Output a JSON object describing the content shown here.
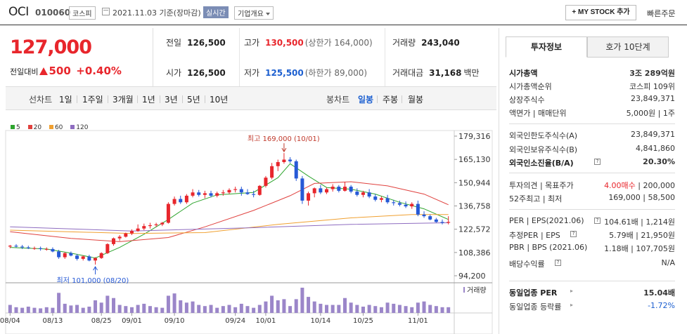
{
  "header": {
    "name": "OCI",
    "code": "010060",
    "market": "코스피",
    "date": "2021.11.03 기준(장마감)",
    "realtime": "실시간",
    "corp_info": "기업개요",
    "mystock": "+ MY STOCK 추가",
    "quick_order": "빠른주문"
  },
  "price": {
    "current": "127,000",
    "change_label": "전일대비",
    "change": "500",
    "change_pct": "+0.40%"
  },
  "stats": {
    "prev_label": "전일",
    "prev": "126,500",
    "high_label": "고가",
    "high": "130,500",
    "upper_limit": "(상한가 164,000)",
    "volume_label": "거래량",
    "volume": "243,040",
    "open_label": "시가",
    "open": "126,500",
    "low_label": "저가",
    "low": "125,500",
    "lower_limit": "(하한가 89,000)",
    "amount_label": "거래대금",
    "amount": "31,168",
    "amount_unit": "백만"
  },
  "toolbar": {
    "line_label": "선차트",
    "periods": [
      "1일",
      "1주일",
      "3개월",
      "1년",
      "3년",
      "5년",
      "10년"
    ],
    "candle_label": "봉차트",
    "candles": [
      "일봉",
      "주봉",
      "월봉"
    ],
    "active_candle": "일봉"
  },
  "chart_data": {
    "type": "candlestick",
    "legend": [
      {
        "name": "5",
        "color": "#2fa52f"
      },
      {
        "name": "20",
        "color": "#e0413e"
      },
      {
        "name": "60",
        "color": "#f0a030"
      },
      {
        "name": "120",
        "color": "#8e6cc0"
      }
    ],
    "y_ticks": [
      179316,
      165130,
      150944,
      136758,
      122572,
      108386,
      94200
    ],
    "x_ticks": [
      "08/04",
      "08/13",
      "08/25",
      "09/01",
      "09/10",
      "09/24",
      "10/01",
      "10/14",
      "10/25",
      "11/01"
    ],
    "high_annotation": "최고 169,000 (10/01)",
    "low_annotation": "최저 101,000 (08/20)",
    "volume_label": "거래량",
    "candles": [
      [
        112000,
        113000,
        111000,
        112500
      ],
      [
        112500,
        113500,
        111500,
        112000
      ],
      [
        112000,
        113000,
        110500,
        111500
      ],
      [
        111500,
        112500,
        110500,
        111000
      ],
      [
        111000,
        112000,
        110000,
        111000
      ],
      [
        111000,
        112000,
        109500,
        110500
      ],
      [
        110500,
        111500,
        109500,
        110500
      ],
      [
        110500,
        111500,
        108500,
        109000
      ],
      [
        109000,
        110000,
        104500,
        105500
      ],
      [
        105500,
        108500,
        104500,
        108000
      ],
      [
        108000,
        109000,
        106000,
        106500
      ],
      [
        106500,
        107500,
        103500,
        104500
      ],
      [
        104500,
        106500,
        103500,
        106000
      ],
      [
        106000,
        107000,
        103000,
        103500
      ],
      [
        103500,
        105500,
        101000,
        105000
      ],
      [
        105000,
        108500,
        104500,
        108000
      ],
      [
        108000,
        114000,
        107500,
        113500
      ],
      [
        113500,
        117500,
        112500,
        117000
      ],
      [
        117000,
        119000,
        115500,
        118000
      ],
      [
        118000,
        120500,
        117500,
        120000
      ],
      [
        120000,
        122500,
        119000,
        121500
      ],
      [
        121500,
        125500,
        121000,
        123000
      ],
      [
        123000,
        126000,
        122000,
        124500
      ],
      [
        124500,
        126500,
        123000,
        125000
      ],
      [
        125000,
        126500,
        124000,
        125500
      ],
      [
        125500,
        127000,
        124500,
        126500
      ],
      [
        126500,
        139000,
        126000,
        138000
      ],
      [
        138000,
        142500,
        137000,
        141000
      ],
      [
        141000,
        143000,
        138000,
        139000
      ],
      [
        139000,
        144000,
        138000,
        143000
      ],
      [
        143000,
        147000,
        142000,
        145000
      ],
      [
        145000,
        146500,
        142500,
        143500
      ],
      [
        143500,
        146000,
        141500,
        144500
      ],
      [
        144500,
        146000,
        142000,
        143000
      ],
      [
        143000,
        145500,
        142000,
        144500
      ],
      [
        144500,
        146500,
        143000,
        145000
      ],
      [
        145000,
        147500,
        144000,
        146500
      ],
      [
        146500,
        148500,
        145000,
        147000
      ],
      [
        147000,
        148500,
        143000,
        145000
      ],
      [
        145000,
        147000,
        143500,
        144000
      ],
      [
        144000,
        146000,
        142000,
        143500
      ],
      [
        143500,
        149500,
        143000,
        149000
      ],
      [
        149000,
        155000,
        148000,
        154000
      ],
      [
        154000,
        163000,
        153000,
        161000
      ],
      [
        161000,
        165000,
        158000,
        163500
      ],
      [
        163500,
        169000,
        162500,
        165000
      ],
      [
        165000,
        166500,
        163000,
        164000
      ],
      [
        164000,
        165000,
        152000,
        153500
      ],
      [
        153500,
        155000,
        138000,
        140000
      ],
      [
        140000,
        145500,
        137000,
        144500
      ],
      [
        144500,
        148000,
        142000,
        147500
      ],
      [
        147500,
        149500,
        144000,
        145000
      ],
      [
        145000,
        148000,
        144000,
        147000
      ],
      [
        147000,
        150000,
        145500,
        148500
      ],
      [
        148500,
        149500,
        145000,
        146000
      ],
      [
        146000,
        151500,
        145500,
        148500
      ],
      [
        148500,
        149500,
        144500,
        145500
      ],
      [
        145500,
        147500,
        142500,
        143500
      ],
      [
        143500,
        146000,
        142000,
        145000
      ],
      [
        145000,
        147000,
        141500,
        142500
      ],
      [
        142500,
        144000,
        139500,
        140500
      ],
      [
        140500,
        142500,
        139000,
        141500
      ],
      [
        141500,
        143500,
        138000,
        139000
      ],
      [
        139000,
        140500,
        137000,
        138500
      ],
      [
        138500,
        140000,
        136500,
        137500
      ],
      [
        137500,
        139500,
        135500,
        136500
      ],
      [
        136500,
        139000,
        135000,
        138000
      ],
      [
        138000,
        140000,
        130500,
        131500
      ],
      [
        131500,
        133500,
        129500,
        130500
      ],
      [
        130500,
        131500,
        128000,
        128500
      ],
      [
        128500,
        129500,
        126500,
        127000
      ],
      [
        127000,
        128500,
        125500,
        126500
      ],
      [
        126500,
        130500,
        125500,
        127000
      ]
    ],
    "volumes": [
      14,
      10,
      9,
      11,
      9,
      8,
      10,
      9,
      35,
      16,
      13,
      14,
      9,
      11,
      22,
      18,
      30,
      26,
      14,
      12,
      10,
      14,
      16,
      12,
      10,
      9,
      30,
      34,
      22,
      18,
      20,
      14,
      12,
      14,
      9,
      12,
      14,
      10,
      16,
      12,
      9,
      14,
      20,
      30,
      22,
      24,
      12,
      24,
      44,
      28,
      20,
      16,
      14,
      14,
      14,
      26,
      18,
      14,
      11,
      14,
      12,
      10,
      18,
      16,
      14,
      12,
      10,
      18,
      20,
      14,
      12,
      10,
      10
    ],
    "ma_values": {
      "5": [
        [
          0,
          111500
        ],
        [
          6,
          110500
        ],
        [
          10,
          108000
        ],
        [
          14,
          105000
        ],
        [
          18,
          111500
        ],
        [
          22,
          119500
        ],
        [
          26,
          128500
        ],
        [
          30,
          138500
        ],
        [
          34,
          143500
        ],
        [
          40,
          145000
        ],
        [
          44,
          154000
        ],
        [
          46,
          162500
        ],
        [
          49,
          155000
        ],
        [
          52,
          148000
        ],
        [
          56,
          147000
        ],
        [
          60,
          144000
        ],
        [
          64,
          139000
        ],
        [
          68,
          135000
        ],
        [
          72,
          128500
        ]
      ],
      "20": [
        [
          0,
          121000
        ],
        [
          10,
          117000
        ],
        [
          18,
          115000
        ],
        [
          26,
          117500
        ],
        [
          32,
          124000
        ],
        [
          40,
          134000
        ],
        [
          46,
          143000
        ],
        [
          50,
          150500
        ],
        [
          56,
          151500
        ],
        [
          62,
          149000
        ],
        [
          68,
          144000
        ],
        [
          72,
          137500
        ]
      ],
      "60": [
        [
          0,
          122000
        ],
        [
          20,
          120000
        ],
        [
          32,
          120500
        ],
        [
          44,
          125500
        ],
        [
          56,
          129500
        ],
        [
          66,
          131500
        ],
        [
          72,
          131500
        ]
      ],
      "120": [
        [
          0,
          124000
        ],
        [
          20,
          121500
        ],
        [
          40,
          123500
        ],
        [
          56,
          125500
        ],
        [
          72,
          126500
        ]
      ]
    }
  },
  "panel": {
    "tabs": [
      "투자정보",
      "호가 10단계"
    ],
    "market_cap_label": "시가총액",
    "market_cap": "3조 289억원",
    "cap_rank_label": "시가총액순위",
    "cap_rank": "코스피 109위",
    "shares_label": "상장주식수",
    "shares": "23,849,371",
    "face_label": "액면가 | 매매단위",
    "face": "5,000원 | 1주",
    "foreign_limit_label": "외국인한도주식수(A)",
    "foreign_limit": "23,849,371",
    "foreign_hold_label": "외국인보유주식수(B)",
    "foreign_hold": "4,841,860",
    "foreign_ratio_label": "외국인소진율(B/A)",
    "foreign_ratio": "20.30%",
    "opinion_label": "투자의견 | 목표주가",
    "opinion": "4.00매수",
    "target": "200,000",
    "w52_label": "52주최고 | 최저",
    "w52": "169,000 | 58,500",
    "per_label": "PER | EPS(2021.06)",
    "per": "104.61배 | 1,214원",
    "est_per_label": "추정PER | EPS",
    "est_per": "5.79배 | 21,950원",
    "pbr_label": "PBR | BPS (2021.06)",
    "pbr": "1.18배 | 107,705원",
    "div_label": "배당수익률",
    "div": "N/A",
    "ind_per_label": "동일업종 PER",
    "ind_per": "15.04배",
    "ind_rate_label": "동일업종 등락률",
    "ind_rate": "-1.72%"
  }
}
